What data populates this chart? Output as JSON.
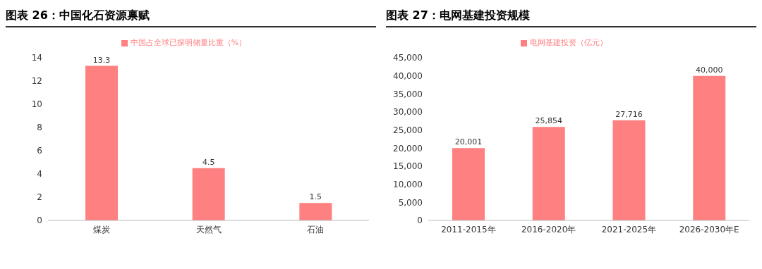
{
  "chart_data": [
    {
      "type": "bar",
      "title": "图表 26：中国化石资源禀赋",
      "categories": [
        "煤炭",
        "天然气",
        "石油"
      ],
      "series": [
        {
          "name": "中国占全球已探明储量比重（%）",
          "color": "#ff8080",
          "values": [
            13.3,
            4.5,
            1.5
          ]
        }
      ],
      "ylim": [
        0,
        14
      ],
      "yticks": [
        0,
        2,
        4,
        6,
        8,
        10,
        12,
        14
      ],
      "data_labels": true,
      "legend": "top",
      "grid": false
    },
    {
      "type": "bar",
      "title": "图表 27：电网基建投资规模",
      "categories": [
        "2011-2015年",
        "2016-2020年",
        "2021-2025年",
        "2026-2030年E"
      ],
      "series": [
        {
          "name": "电网基建投资（亿元）",
          "color": "#ff8080",
          "values": [
            20001,
            25854,
            27716,
            40000
          ],
          "value_labels": [
            "20,001",
            "25,854",
            "27,716",
            "40,000"
          ]
        }
      ],
      "ylim": [
        0,
        45000
      ],
      "yticks": [
        0,
        {
          "value": 5000,
          "label": "5,000"
        },
        {
          "value": 10000,
          "label": "10,000"
        },
        {
          "value": 15000,
          "label": "15,000"
        },
        {
          "value": 20000,
          "label": "20,000"
        },
        {
          "value": 25000,
          "label": "25,000"
        },
        {
          "value": 30000,
          "label": "30,000"
        },
        {
          "value": 35000,
          "label": "35,000"
        },
        {
          "value": 40000,
          "label": "40,000"
        },
        {
          "value": 45000,
          "label": "45,000"
        }
      ],
      "legend": "top",
      "grid": false
    }
  ]
}
